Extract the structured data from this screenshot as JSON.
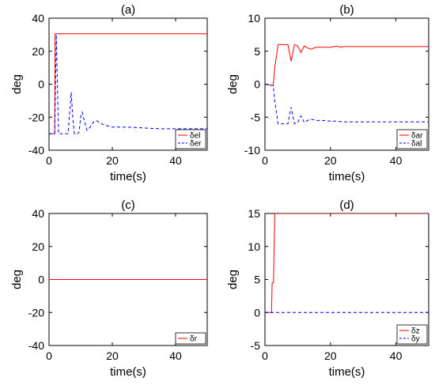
{
  "chart_data": [
    {
      "type": "line",
      "title": "(a)",
      "xlabel": "time(s)",
      "ylabel": "deg",
      "xlim": [
        0,
        50
      ],
      "ylim": [
        -40,
        40
      ],
      "xticks": [
        0,
        20,
        40
      ],
      "yticks": [
        40,
        20,
        0,
        -20,
        -40
      ],
      "legend_position": "bottom-right",
      "series": [
        {
          "name": "δel",
          "color": "#ff0000",
          "dash": "solid",
          "x": [
            0,
            1.8,
            1.9,
            2.5,
            50
          ],
          "y": [
            -30,
            -30,
            30.5,
            30.5,
            30.5
          ]
        },
        {
          "name": "δer",
          "color": "#0000ff",
          "dash": "dashed",
          "x": [
            0,
            1.8,
            2.3,
            3.0,
            4.5,
            6.0,
            6.5,
            7.0,
            7.5,
            8.0,
            9.0,
            9.5,
            10.0,
            10.5,
            11.0,
            12.0,
            13.0,
            14.0,
            15.0,
            16.5,
            18.0,
            20.0,
            22.0,
            25.0,
            30.0,
            35.0,
            40.0,
            45.0,
            50.0
          ],
          "y": [
            -30,
            -30,
            30,
            -30,
            -30,
            -30,
            -18,
            -5,
            -20,
            -30,
            -30,
            -29,
            -20,
            -17,
            -21,
            -28,
            -26,
            -23,
            -22,
            -24,
            -25,
            -26,
            -26,
            -26,
            -26.5,
            -27,
            -27,
            -27,
            -27
          ]
        }
      ]
    },
    {
      "type": "line",
      "title": "(b)",
      "xlabel": "time(s)",
      "ylabel": "deg",
      "xlim": [
        0,
        50
      ],
      "ylim": [
        -10,
        10
      ],
      "xticks": [
        0,
        20,
        40
      ],
      "yticks": [
        10,
        5,
        0,
        -5,
        -10
      ],
      "legend_position": "bottom-right",
      "series": [
        {
          "name": "δar",
          "color": "#ff0000",
          "dash": "solid",
          "x": [
            0,
            2.5,
            3.0,
            4.0,
            7.0,
            8.0,
            9.0,
            10.0,
            11.0,
            12.0,
            13.0,
            14.0,
            15.0,
            16.0,
            18.0,
            20.0,
            22.0,
            23.0,
            24.0,
            30.0,
            40.0,
            50.0
          ],
          "y": [
            0,
            -0.2,
            2.5,
            6.0,
            6.0,
            3.5,
            6.0,
            5.8,
            4.8,
            5.8,
            5.5,
            5.3,
            5.5,
            5.6,
            5.6,
            5.6,
            5.8,
            5.6,
            5.7,
            5.7,
            5.7,
            5.7
          ],
          "color_hex": "#ff0000"
        },
        {
          "name": "δal",
          "color": "#0000ff",
          "dash": "dashed",
          "x": [
            0,
            2.5,
            3.0,
            4.0,
            7.0,
            8.0,
            9.0,
            10.0,
            11.0,
            12.0,
            13.0,
            14.0,
            15.0,
            16.0,
            18.0,
            20.0,
            22.0,
            24.0,
            30.0,
            40.0,
            50.0
          ],
          "y": [
            0,
            -0.2,
            -2.5,
            -6.0,
            -6.0,
            -3.5,
            -6.0,
            -5.8,
            -4.8,
            -5.8,
            -5.5,
            -5.3,
            -5.4,
            -5.5,
            -5.5,
            -5.6,
            -5.6,
            -5.7,
            -5.7,
            -5.7,
            -5.7
          ]
        }
      ]
    },
    {
      "type": "line",
      "title": "(c)",
      "xlabel": "time(s)",
      "ylabel": "deg",
      "xlim": [
        0,
        50
      ],
      "ylim": [
        -40,
        40
      ],
      "xticks": [
        0,
        20,
        40
      ],
      "yticks": [
        40,
        20,
        0,
        -20,
        -40
      ],
      "legend_position": "bottom-right",
      "series": [
        {
          "name": "δr",
          "color": "#ff0000",
          "dash": "solid",
          "x": [
            0,
            50
          ],
          "y": [
            0,
            0
          ]
        }
      ]
    },
    {
      "type": "line",
      "title": "(d)",
      "xlabel": "time(s)",
      "ylabel": "deg",
      "xlim": [
        0,
        50
      ],
      "ylim": [
        -5,
        15
      ],
      "xticks": [
        0,
        20,
        40
      ],
      "yticks": [
        15,
        10,
        5,
        0,
        -5
      ],
      "legend_position": "bottom-right",
      "series": [
        {
          "name": "δz",
          "color": "#ff0000",
          "dash": "solid",
          "x": [
            0,
            2.0,
            2.2,
            2.6,
            3.0,
            50
          ],
          "y": [
            0,
            0,
            4.5,
            4.5,
            15,
            15
          ]
        },
        {
          "name": "δy",
          "color": "#0000ff",
          "dash": "dashed",
          "x": [
            0,
            50
          ],
          "y": [
            0,
            0
          ]
        }
      ]
    }
  ]
}
